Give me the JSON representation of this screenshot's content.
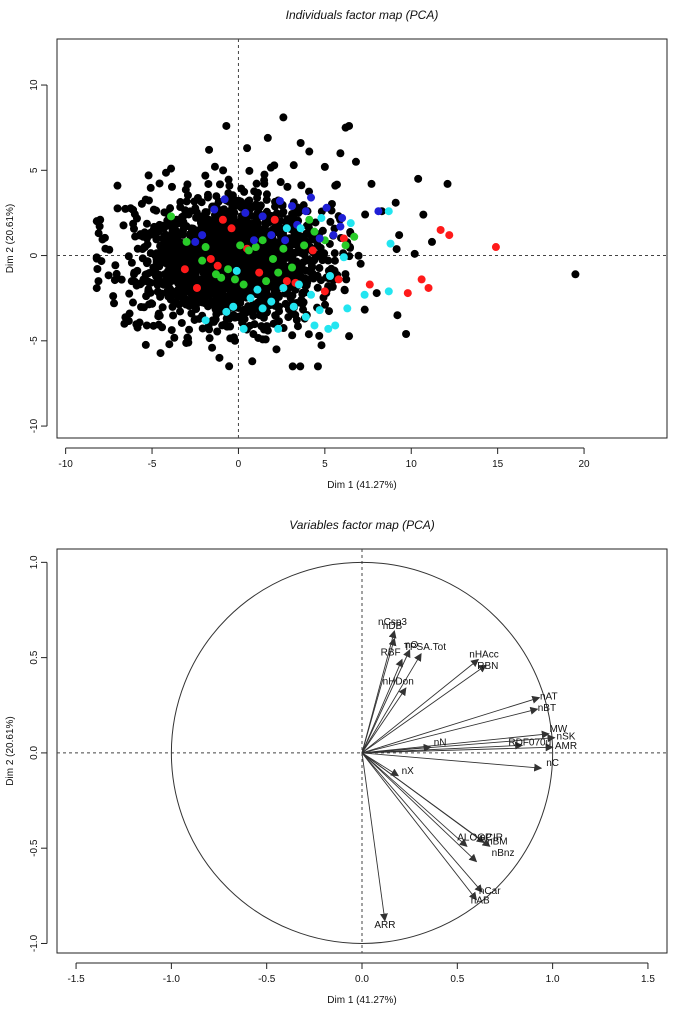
{
  "chart_data": [
    {
      "type": "scatter",
      "title": "Individuals factor map (PCA)",
      "xlabel": "Dim 1 (41.27%)",
      "ylabel": "Dim 2 (20.61%)",
      "xlim": [
        -10.5,
        24.8
      ],
      "ylim": [
        -10.7,
        12.7
      ],
      "xticks": [
        -10,
        -5,
        0,
        5,
        10,
        15,
        20
      ],
      "yticks": [
        -10,
        -5,
        0,
        5,
        10
      ],
      "xtick_labels": [
        "-10",
        "-5",
        "0",
        "5",
        "10",
        "15",
        "20"
      ],
      "ytick_labels": [
        "-10",
        "-5",
        "0",
        "5",
        "10"
      ],
      "reference_lines": {
        "x": 0,
        "y": 0,
        "style": "dashed"
      },
      "grid": false,
      "legend": "none",
      "colors": {
        "group_1": "#000000",
        "group_2": "#ff1a1a",
        "group_3": "#29cc29",
        "group_4": "#1f1fd6",
        "group_5": "#22e5f0"
      },
      "point_cloud": {
        "group": "group_1",
        "approximate_count": 1800,
        "x_center": -0.3,
        "y_center": -0.3,
        "x_spread": 2.7,
        "y_spread": 1.8,
        "x_range": [
          -8.2,
          12.2
        ],
        "y_range": [
          -6.5,
          8.1
        ]
      },
      "series": [
        {
          "group": "group_1",
          "points": [
            [
              19.5,
              -1.1
            ],
            [
              12.1,
              4.2
            ],
            [
              10.4,
              4.5
            ],
            [
              10.2,
              0.1
            ],
            [
              9.3,
              1.2
            ],
            [
              9.1,
              3.1
            ],
            [
              9.2,
              -3.5
            ],
            [
              8.3,
              2.6
            ],
            [
              7.7,
              4.2
            ],
            [
              6.4,
              7.6
            ],
            [
              6.2,
              7.5
            ],
            [
              5.6,
              4.1
            ],
            [
              5.0,
              5.2
            ],
            [
              4.6,
              -6.5
            ],
            [
              4.1,
              6.1
            ],
            [
              2.6,
              8.1
            ],
            [
              -0.7,
              7.6
            ],
            [
              -1.7,
              6.2
            ],
            [
              0.5,
              6.3
            ],
            [
              -7.0,
              4.1
            ],
            [
              -7.2,
              -2.8
            ],
            [
              -6.3,
              -3.4
            ],
            [
              -5.3,
              -4.1
            ],
            [
              -2.9,
              -5.1
            ],
            [
              -1.1,
              -6.0
            ],
            [
              0.8,
              -6.2
            ],
            [
              2.2,
              -5.5
            ],
            [
              3.2,
              5.3
            ],
            [
              11.2,
              0.8
            ],
            [
              10.7,
              2.4
            ],
            [
              9.7,
              -4.6
            ],
            [
              8.0,
              -2.2
            ],
            [
              6.8,
              5.5
            ],
            [
              5.9,
              6.0
            ],
            [
              3.6,
              6.6
            ],
            [
              1.7,
              6.9
            ],
            [
              -3.9,
              5.1
            ],
            [
              -5.2,
              4.7
            ],
            [
              -8.0,
              2.1
            ],
            [
              -7.7,
              0.4
            ],
            [
              -8.1,
              -1.5
            ],
            [
              -6.6,
              -4.0
            ],
            [
              -4.0,
              -5.2
            ],
            [
              -0.2,
              -5.0
            ],
            [
              1.7,
              -4.4
            ]
          ]
        },
        {
          "group": "group_2",
          "points": [
            [
              14.9,
              0.5
            ],
            [
              11.7,
              1.5
            ],
            [
              12.2,
              1.2
            ],
            [
              11.0,
              -1.9
            ],
            [
              10.6,
              -1.4
            ],
            [
              9.8,
              -2.2
            ],
            [
              7.6,
              -1.7
            ],
            [
              5.8,
              -1.4
            ],
            [
              5.0,
              -2.1
            ],
            [
              3.3,
              -1.6
            ],
            [
              2.8,
              -1.5
            ],
            [
              1.2,
              -1.0
            ],
            [
              -0.9,
              2.1
            ],
            [
              -0.4,
              1.6
            ],
            [
              -1.2,
              -0.6
            ],
            [
              -1.6,
              -0.2
            ],
            [
              -3.1,
              -0.8
            ],
            [
              -2.4,
              -1.9
            ],
            [
              0.5,
              0.4
            ],
            [
              2.1,
              2.1
            ],
            [
              4.3,
              0.3
            ],
            [
              6.1,
              1.0
            ]
          ]
        },
        {
          "group": "group_3",
          "points": [
            [
              -3.9,
              2.3
            ],
            [
              -3.0,
              0.8
            ],
            [
              -2.1,
              -0.3
            ],
            [
              -1.3,
              -1.1
            ],
            [
              -1.0,
              -1.3
            ],
            [
              -0.6,
              -0.8
            ],
            [
              -0.2,
              -1.4
            ],
            [
              0.3,
              -1.7
            ],
            [
              0.6,
              0.3
            ],
            [
              1.0,
              0.5
            ],
            [
              1.4,
              0.9
            ],
            [
              2.0,
              -0.2
            ],
            [
              2.6,
              0.4
            ],
            [
              3.1,
              -0.7
            ],
            [
              3.8,
              0.6
            ],
            [
              4.4,
              1.4
            ],
            [
              5.0,
              0.9
            ],
            [
              6.2,
              0.6
            ],
            [
              6.7,
              1.1
            ],
            [
              -1.9,
              0.5
            ],
            [
              0.1,
              0.6
            ],
            [
              1.6,
              -1.5
            ],
            [
              2.3,
              -1.0
            ],
            [
              4.1,
              2.1
            ]
          ]
        },
        {
          "group": "group_4",
          "points": [
            [
              -0.8,
              3.3
            ],
            [
              1.4,
              2.3
            ],
            [
              2.4,
              3.2
            ],
            [
              3.1,
              2.9
            ],
            [
              3.9,
              2.6
            ],
            [
              4.2,
              3.4
            ],
            [
              5.1,
              2.8
            ],
            [
              5.9,
              1.7
            ],
            [
              8.1,
              2.6
            ],
            [
              -1.4,
              2.7
            ],
            [
              -2.1,
              1.2
            ],
            [
              -2.5,
              0.8
            ],
            [
              0.4,
              2.5
            ],
            [
              1.9,
              1.2
            ],
            [
              3.4,
              1.8
            ],
            [
              4.7,
              1.0
            ],
            [
              5.5,
              1.2
            ],
            [
              6.0,
              2.2
            ],
            [
              0.9,
              0.9
            ],
            [
              2.7,
              0.9
            ]
          ]
        },
        {
          "group": "group_5",
          "points": [
            [
              8.7,
              2.6
            ],
            [
              8.8,
              0.7
            ],
            [
              8.7,
              -2.1
            ],
            [
              7.3,
              -2.3
            ],
            [
              6.5,
              1.9
            ],
            [
              6.1,
              -0.1
            ],
            [
              5.3,
              -1.2
            ],
            [
              4.7,
              -3.2
            ],
            [
              4.4,
              -4.1
            ],
            [
              3.9,
              -3.6
            ],
            [
              3.2,
              -3.0
            ],
            [
              2.3,
              -4.3
            ],
            [
              1.4,
              -3.1
            ],
            [
              0.7,
              -2.5
            ],
            [
              -0.3,
              -3.0
            ],
            [
              -0.7,
              -3.3
            ],
            [
              0.3,
              -4.3
            ],
            [
              1.9,
              -2.7
            ],
            [
              2.6,
              -1.9
            ],
            [
              3.5,
              -1.7
            ],
            [
              4.2,
              -2.3
            ],
            [
              5.2,
              -4.3
            ],
            [
              5.6,
              -4.1
            ],
            [
              6.3,
              -3.1
            ],
            [
              2.8,
              1.6
            ],
            [
              3.6,
              1.6
            ],
            [
              4.8,
              2.2
            ],
            [
              -1.9,
              -3.8
            ],
            [
              -0.1,
              -0.9
            ],
            [
              1.1,
              -2.0
            ]
          ]
        }
      ]
    },
    {
      "type": "scatter",
      "subtype": "correlation-circle",
      "title": "Variables factor map (PCA)",
      "xlabel": "Dim 1 (41.27%)",
      "ylabel": "Dim 2 (20.61%)",
      "xlim": [
        -1.6,
        1.6
      ],
      "ylim": [
        -1.05,
        1.07
      ],
      "xticks": [
        -1.5,
        -1.0,
        -0.5,
        0.0,
        0.5,
        1.0,
        1.5
      ],
      "yticks": [
        -1.0,
        -0.5,
        0.0,
        0.5,
        1.0
      ],
      "xtick_labels": [
        "-1.5",
        "-1.0",
        "-0.5",
        "0.0",
        "0.5",
        "1.0",
        "1.5"
      ],
      "ytick_labels": [
        "-1.0",
        "-0.5",
        "0.0",
        "0.5",
        "1.0"
      ],
      "unit_circle": true,
      "reference_lines": {
        "x": 0,
        "y": 0,
        "style": "dashed"
      },
      "grid": false,
      "legend": "none",
      "colors": {
        "arrow": "#333333",
        "circle": "#333333"
      },
      "vectors": [
        {
          "label": "nCsp3",
          "x": 0.17,
          "y": 0.64,
          "label_x": 0.16,
          "label_y": 0.67
        },
        {
          "label": "nDB",
          "x": 0.17,
          "y": 0.6,
          "label_x": 0.16,
          "label_y": 0.65
        },
        {
          "label": "nO",
          "x": 0.25,
          "y": 0.54,
          "label_x": 0.26,
          "label_y": 0.55
        },
        {
          "label": "TPSA.Tot",
          "x": 0.31,
          "y": 0.52,
          "label_x": 0.33,
          "label_y": 0.54
        },
        {
          "label": "RBF",
          "x": 0.21,
          "y": 0.49,
          "label_x": 0.15,
          "label_y": 0.51
        },
        {
          "label": "nHAcc",
          "x": 0.61,
          "y": 0.49,
          "label_x": 0.64,
          "label_y": 0.5
        },
        {
          "label": "RBN",
          "x": 0.65,
          "y": 0.46,
          "label_x": 0.66,
          "label_y": 0.44
        },
        {
          "label": "nHDon",
          "x": 0.23,
          "y": 0.34,
          "label_x": 0.19,
          "label_y": 0.36
        },
        {
          "label": "nAT",
          "x": 0.93,
          "y": 0.29,
          "label_x": 0.98,
          "label_y": 0.28
        },
        {
          "label": "nBT",
          "x": 0.92,
          "y": 0.23,
          "label_x": 0.97,
          "label_y": 0.22
        },
        {
          "label": "MW",
          "x": 0.98,
          "y": 0.1,
          "label_x": 1.03,
          "label_y": 0.11
        },
        {
          "label": "nSK",
          "x": 1.01,
          "y": 0.08,
          "label_x": 1.07,
          "label_y": 0.07
        },
        {
          "label": "AMR",
          "x": 1.0,
          "y": 0.03,
          "label_x": 1.07,
          "label_y": 0.02
        },
        {
          "label": "RDF070u",
          "x": 0.84,
          "y": 0.04,
          "label_x": 0.88,
          "label_y": 0.04
        },
        {
          "label": "nN",
          "x": 0.36,
          "y": 0.03,
          "label_x": 0.41,
          "label_y": 0.04
        },
        {
          "label": "nC",
          "x": 0.94,
          "y": -0.08,
          "label_x": 1.0,
          "label_y": -0.07
        },
        {
          "label": "nX",
          "x": 0.19,
          "y": -0.12,
          "label_x": 0.24,
          "label_y": -0.11
        },
        {
          "label": "ALOGP",
          "x": 0.55,
          "y": -0.49,
          "label_x": 0.59,
          "label_y": -0.46
        },
        {
          "label": "nCIR",
          "x": 0.64,
          "y": -0.47,
          "label_x": 0.68,
          "label_y": -0.46
        },
        {
          "label": "nBM",
          "x": 0.67,
          "y": -0.49,
          "label_x": 0.71,
          "label_y": -0.48
        },
        {
          "label": "nBnz",
          "x": 0.6,
          "y": -0.57,
          "label_x": 0.74,
          "label_y": -0.54
        },
        {
          "label": "nCar",
          "x": 0.63,
          "y": -0.73,
          "label_x": 0.67,
          "label_y": -0.74
        },
        {
          "label": "nAB",
          "x": 0.6,
          "y": -0.77,
          "label_x": 0.62,
          "label_y": -0.79
        },
        {
          "label": "ARR",
          "x": 0.12,
          "y": -0.88,
          "label_x": 0.12,
          "label_y": -0.92
        }
      ]
    }
  ]
}
